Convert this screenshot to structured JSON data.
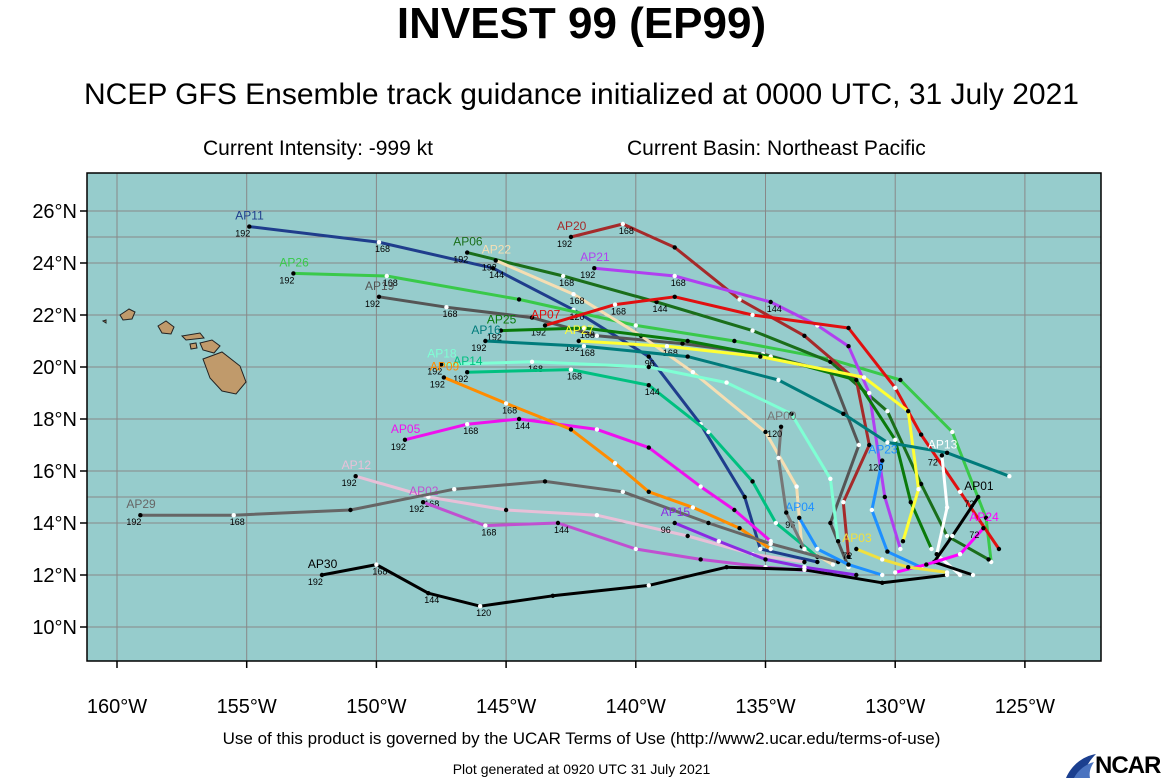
{
  "title": "INVEST 99 (EP99)",
  "subtitle": "NCEP GFS Ensemble track guidance initialized at 0000 UTC, 31 July 2021",
  "intensity": "Current Intensity: -999 kt",
  "basin": "Current Basin: Northeast Pacific",
  "terms": "Use of this product is governed by the UCAR Terms of Use (http://www2.ucar.edu/terms-of-use)",
  "generated": "Plot generated at 0920 UTC   31 July 2021",
  "logo_text": "NCAR",
  "colors": {
    "ocean": "#96cccc",
    "land": "#c09a6b",
    "grid": "#888888"
  },
  "map": {
    "lon_ticks": [
      "160°W",
      "155°W",
      "150°W",
      "145°W",
      "140°W",
      "135°W",
      "130°W",
      "125°W"
    ],
    "lat_ticks": [
      "26°N",
      "24°N",
      "22°N",
      "20°N",
      "18°N",
      "16°N",
      "14°N",
      "12°N",
      "10°N"
    ]
  },
  "tracks": [
    {
      "id": "AP11",
      "color": "#1f3d8c",
      "pts": [
        [
          -154.9,
          25.4
        ],
        [
          -149.9,
          24.8
        ],
        [
          -145.5,
          23.8
        ],
        [
          -142.4,
          22.2
        ],
        [
          -139.5,
          20.4
        ],
        [
          -137.5,
          17.8
        ],
        [
          -135.8,
          15.0
        ],
        [
          -135.2,
          13.0
        ],
        [
          -133.0,
          12.5
        ]
      ],
      "hours": [
        "192",
        "168",
        "144",
        "120",
        "96"
      ]
    },
    {
      "id": "AP26",
      "color": "#39c94a",
      "pts": [
        [
          -153.2,
          23.6
        ],
        [
          -149.6,
          23.5
        ],
        [
          -144.5,
          22.6
        ],
        [
          -140.0,
          21.6
        ],
        [
          -136.2,
          21.0
        ],
        [
          -132.5,
          20.3
        ],
        [
          -129.8,
          19.5
        ],
        [
          -127.8,
          17.5
        ],
        [
          -126.5,
          14.2
        ],
        [
          -126.3,
          12.5
        ]
      ],
      "hours": [
        "192",
        "168"
      ]
    },
    {
      "id": "AP19",
      "color": "#555555",
      "pts": [
        [
          -149.9,
          22.7
        ],
        [
          -147.3,
          22.3
        ],
        [
          -144.0,
          21.9
        ],
        [
          -141.5,
          21.2
        ],
        [
          -138.2,
          20.9
        ],
        [
          -135.1,
          20.5
        ],
        [
          -132.5,
          19.8
        ],
        [
          -131.4,
          17.0
        ],
        [
          -132.5,
          14.0
        ],
        [
          -131.8,
          12.3
        ]
      ],
      "hours": [
        "192",
        "168"
      ]
    },
    {
      "id": "AP06",
      "color": "#1a6e1a",
      "pts": [
        [
          -146.5,
          24.4
        ],
        [
          -142.8,
          23.5
        ],
        [
          -139.2,
          22.5
        ],
        [
          -135.5,
          21.4
        ],
        [
          -132.5,
          20.2
        ],
        [
          -130.3,
          18.3
        ],
        [
          -129.0,
          15.5
        ],
        [
          -128.0,
          13.5
        ],
        [
          -126.4,
          12.6
        ]
      ],
      "hours": [
        "192",
        "168",
        "144"
      ]
    },
    {
      "id": "AP22",
      "color": "#f5deb3",
      "pts": [
        [
          -145.4,
          24.1
        ],
        [
          -142.4,
          22.8
        ],
        [
          -139.8,
          21.2
        ],
        [
          -137.8,
          19.8
        ],
        [
          -135.0,
          17.5
        ],
        [
          -133.8,
          15.4
        ],
        [
          -133.6,
          13.1
        ],
        [
          -132.4,
          12.4
        ]
      ],
      "hours": [
        "192",
        "168"
      ]
    },
    {
      "id": "AP20",
      "color": "#a52a2a",
      "pts": [
        [
          -142.5,
          25.0
        ],
        [
          -140.5,
          25.5
        ],
        [
          -138.5,
          24.6
        ],
        [
          -136.0,
          22.6
        ],
        [
          -133.5,
          21.2
        ],
        [
          -131.5,
          19.5
        ],
        [
          -131.0,
          17.0
        ],
        [
          -132.0,
          14.8
        ],
        [
          -131.8,
          12.7
        ]
      ],
      "hours": [
        "192",
        "168"
      ]
    },
    {
      "id": "AP21",
      "color": "#b040f0",
      "pts": [
        [
          -141.6,
          23.8
        ],
        [
          -138.5,
          23.5
        ],
        [
          -134.8,
          22.5
        ],
        [
          -133.0,
          21.6
        ],
        [
          -131.8,
          20.8
        ],
        [
          -131.0,
          19.0
        ],
        [
          -130.4,
          15.0
        ],
        [
          -129.8,
          13.0
        ]
      ],
      "hours": [
        "192",
        "168",
        "144"
      ]
    },
    {
      "id": "AP07",
      "color": "#e01010",
      "pts": [
        [
          -143.5,
          21.6
        ],
        [
          -140.8,
          22.4
        ],
        [
          -138.5,
          22.7
        ],
        [
          -135.5,
          22.0
        ],
        [
          -131.8,
          21.5
        ],
        [
          -130.0,
          19.2
        ],
        [
          -129.0,
          17.4
        ],
        [
          -127.5,
          15.2
        ],
        [
          -126.0,
          13.0
        ]
      ],
      "hours": [
        "192",
        "168"
      ]
    },
    {
      "id": "AP25",
      "color": "#0a7a0a",
      "pts": [
        [
          -145.2,
          21.4
        ],
        [
          -142.0,
          21.5
        ],
        [
          -138.0,
          21.0
        ],
        [
          -134.8,
          20.4
        ],
        [
          -131.5,
          19.5
        ],
        [
          -130.0,
          17.2
        ],
        [
          -129.4,
          14.8
        ],
        [
          -128.6,
          13.0
        ]
      ],
      "hours": [
        "192",
        "168"
      ]
    },
    {
      "id": "AP27",
      "color": "#ffff33",
      "pts": [
        [
          -142.2,
          21.0
        ],
        [
          -138.8,
          20.8
        ],
        [
          -135.2,
          20.4
        ],
        [
          -131.2,
          19.6
        ],
        [
          -129.5,
          18.3
        ],
        [
          -129.1,
          15.3
        ],
        [
          -129.7,
          13.3
        ]
      ],
      "hours": [
        "192",
        "168"
      ]
    },
    {
      "id": "AP16",
      "color": "#007b7b",
      "pts": [
        [
          -145.8,
          21.0
        ],
        [
          -142.0,
          20.8
        ],
        [
          -138.0,
          20.4
        ],
        [
          -134.5,
          19.5
        ],
        [
          -132.0,
          18.2
        ],
        [
          -130.3,
          17.1
        ],
        [
          -128.0,
          16.7
        ],
        [
          -125.6,
          15.8
        ]
      ],
      "hours": [
        "192",
        "168"
      ]
    },
    {
      "id": "AP18",
      "color": "#7fffd4",
      "pts": [
        [
          -147.5,
          20.1
        ],
        [
          -144.0,
          20.2
        ],
        [
          -139.5,
          20.0
        ],
        [
          -136.5,
          19.4
        ],
        [
          -134.0,
          18.2
        ],
        [
          -132.5,
          15.7
        ],
        [
          -132.2,
          13.3
        ]
      ],
      "hours": [
        "192",
        "168"
      ]
    },
    {
      "id": "AP14",
      "color": "#00c080",
      "pts": [
        [
          -146.5,
          19.8
        ],
        [
          -142.5,
          19.9
        ],
        [
          -139.5,
          19.3
        ],
        [
          -137.2,
          17.5
        ],
        [
          -135.5,
          15.6
        ],
        [
          -134.6,
          14.0
        ],
        [
          -133.0,
          12.7
        ]
      ],
      "hours": [
        "192",
        "168",
        "144"
      ]
    },
    {
      "id": "AP05",
      "color": "#ee11ee",
      "pts": [
        [
          -148.9,
          17.2
        ],
        [
          -146.5,
          17.8
        ],
        [
          -144.5,
          18.0
        ],
        [
          -141.5,
          17.6
        ],
        [
          -139.5,
          16.9
        ],
        [
          -137.5,
          15.4
        ],
        [
          -136.2,
          14.5
        ],
        [
          -134.8,
          13.3
        ]
      ],
      "hours": [
        "192",
        "168",
        "144"
      ]
    },
    {
      "id": "AP09",
      "color": "#ff8c00",
      "pts": [
        [
          -147.4,
          19.6
        ],
        [
          -145.0,
          18.6
        ],
        [
          -142.5,
          17.6
        ],
        [
          -140.8,
          16.3
        ],
        [
          -139.5,
          15.2
        ],
        [
          -137.8,
          14.6
        ],
        [
          -136.0,
          13.8
        ],
        [
          -134.8,
          13.0
        ]
      ],
      "hours": [
        "192",
        "168"
      ]
    },
    {
      "id": "AP12",
      "color": "#e8c0d8",
      "pts": [
        [
          -150.8,
          15.8
        ],
        [
          -148.0,
          15.0
        ],
        [
          -145.0,
          14.5
        ],
        [
          -141.5,
          14.3
        ],
        [
          -138.0,
          13.5
        ],
        [
          -135.5,
          12.8
        ],
        [
          -133.5,
          12.5
        ]
      ],
      "hours": [
        "192",
        "168"
      ]
    },
    {
      "id": "AP02",
      "color": "#c050d0",
      "pts": [
        [
          -148.2,
          14.8
        ],
        [
          -145.8,
          13.9
        ],
        [
          -143.0,
          14.0
        ],
        [
          -140.0,
          13.0
        ],
        [
          -137.5,
          12.6
        ],
        [
          -135.0,
          12.3
        ],
        [
          -132.5,
          12.1
        ]
      ],
      "hours": [
        "192",
        "168",
        "144"
      ]
    },
    {
      "id": "AP29",
      "color": "#666666",
      "pts": [
        [
          -159.1,
          14.3
        ],
        [
          -155.5,
          14.3
        ],
        [
          -151.0,
          14.5
        ],
        [
          -147.0,
          15.3
        ],
        [
          -143.5,
          15.6
        ],
        [
          -140.5,
          15.2
        ],
        [
          -137.2,
          14.0
        ],
        [
          -134.8,
          13.2
        ],
        [
          -132.2,
          12.5
        ]
      ],
      "hours": [
        "192",
        "168"
      ]
    },
    {
      "id": "AP30",
      "color": "#000000",
      "pts": [
        [
          -152.1,
          12.0
        ],
        [
          -150.0,
          12.4
        ],
        [
          -148.0,
          11.3
        ],
        [
          -146.0,
          10.8
        ],
        [
          -143.2,
          11.2
        ],
        [
          -139.5,
          11.6
        ],
        [
          -136.5,
          12.3
        ],
        [
          -133.5,
          12.2
        ],
        [
          -130.5,
          11.7
        ],
        [
          -128.0,
          12.0
        ]
      ],
      "hours": [
        "192",
        "168",
        "144",
        "120"
      ]
    },
    {
      "id": "AP15",
      "color": "#8a2be2",
      "pts": [
        [
          -138.5,
          14.0
        ],
        [
          -136.8,
          13.3
        ],
        [
          -135.0,
          12.6
        ],
        [
          -133.5,
          12.3
        ],
        [
          -131.5,
          12.0
        ]
      ],
      "hours": [
        "96"
      ]
    },
    {
      "id": "AP04",
      "color": "#1e90ff",
      "pts": [
        [
          -133.7,
          14.2
        ],
        [
          -133.0,
          13.0
        ],
        [
          -131.8,
          12.4
        ],
        [
          -130.5,
          12.0
        ]
      ],
      "hours": [
        "96"
      ]
    },
    {
      "id": "AP23",
      "color": "#1e90ff",
      "pts": [
        [
          -130.5,
          16.4
        ],
        [
          -130.9,
          14.5
        ],
        [
          -130.3,
          12.9
        ],
        [
          -129.0,
          12.3
        ]
      ],
      "hours": [
        "120"
      ]
    },
    {
      "id": "AP13",
      "color": "#ffffff",
      "pts": [
        [
          -128.2,
          16.6
        ],
        [
          -128.0,
          14.6
        ],
        [
          -128.4,
          12.8
        ],
        [
          -127.5,
          12.0
        ]
      ],
      "hours": [
        "72"
      ]
    },
    {
      "id": "AP01",
      "color": "#000000",
      "pts": [
        [
          -126.8,
          15.0
        ],
        [
          -127.8,
          13.5
        ],
        [
          -128.5,
          12.5
        ],
        [
          -127.0,
          12.0
        ]
      ],
      "hours": [
        "72"
      ]
    },
    {
      "id": "AP24",
      "color": "#ff00ff",
      "pts": [
        [
          -126.6,
          13.8
        ],
        [
          -127.5,
          12.8
        ],
        [
          -128.8,
          12.4
        ],
        [
          -130.0,
          12.1
        ]
      ],
      "hours": [
        "72"
      ]
    },
    {
      "id": "AP00",
      "color": "#777777",
      "pts": [
        [
          -134.4,
          17.7
        ],
        [
          -134.5,
          16.5
        ],
        [
          -134.2,
          14.4
        ],
        [
          -133.5,
          13.0
        ]
      ],
      "hours": [
        "120"
      ]
    },
    {
      "id": "AP03",
      "color": "#f0e040",
      "pts": [
        [
          -131.5,
          13.0
        ],
        [
          -130.5,
          12.6
        ],
        [
          -129.5,
          12.3
        ],
        [
          -128.0,
          12.1
        ]
      ],
      "hours": [
        "72"
      ]
    }
  ]
}
